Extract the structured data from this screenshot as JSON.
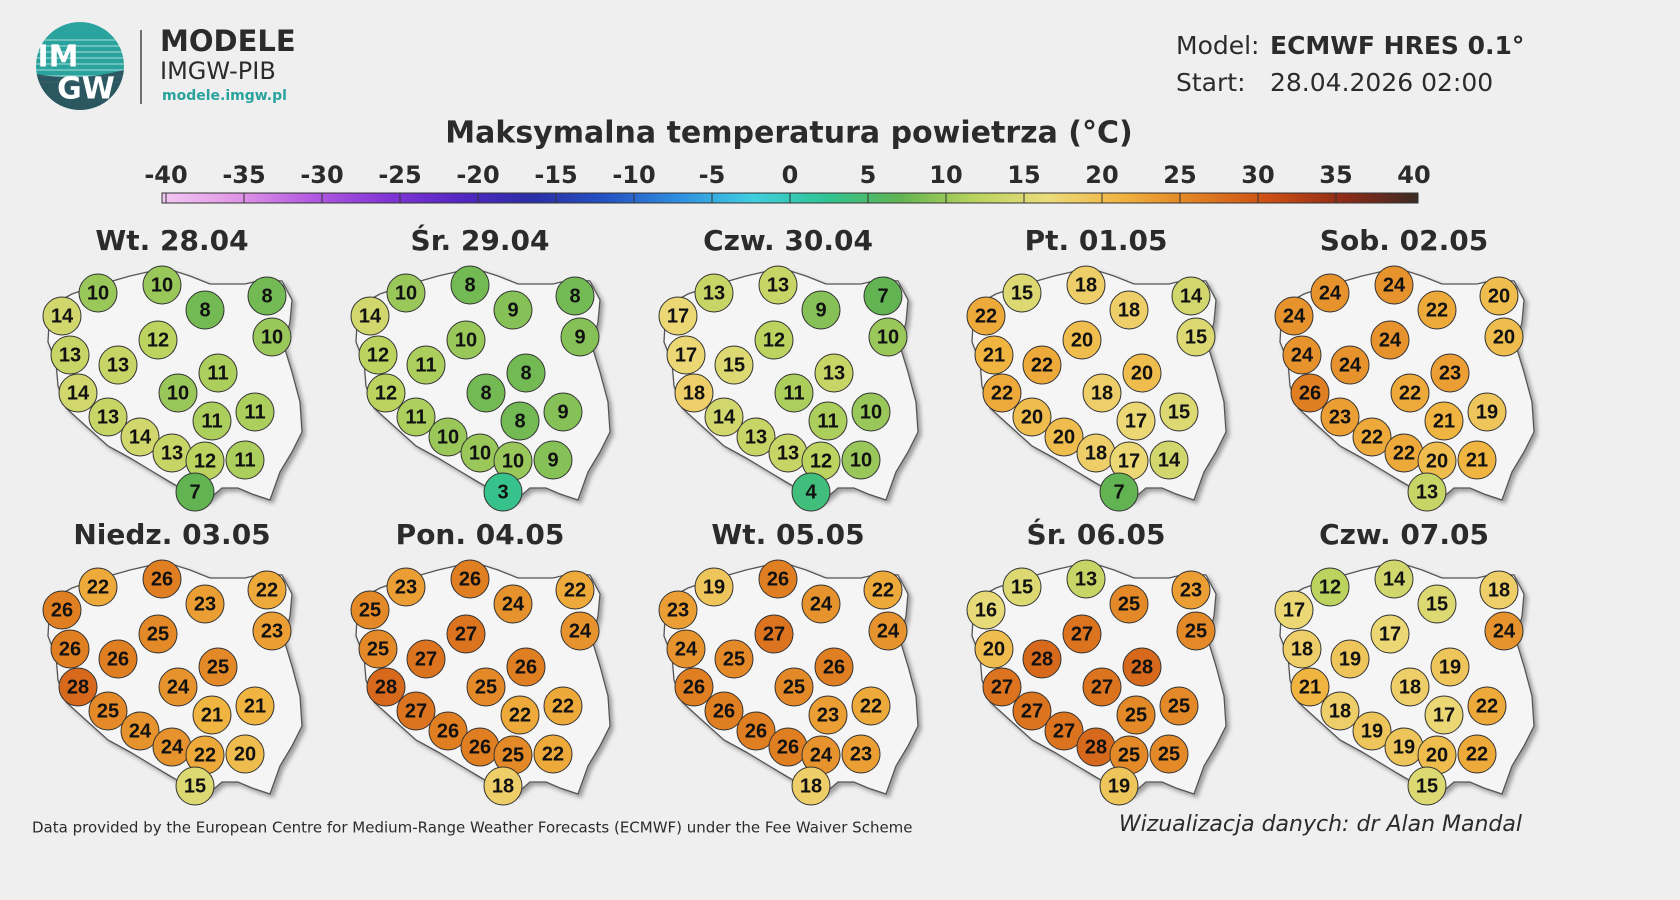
{
  "header": {
    "logo": [
      "IM",
      "GW"
    ],
    "brand": "MODELE",
    "institute": "IMGW-PIB",
    "url": "modele.imgw.pl",
    "model_label": "Model:",
    "model": "ECMWF HRES 0.1°",
    "start_label": "Start:",
    "start": "28.04.2026 02:00",
    "title": "Maksymalna temperatura powietrza (°C)"
  },
  "colorbar": {
    "ticks": [
      -40,
      -35,
      -30,
      -25,
      -20,
      -15,
      -10,
      -5,
      0,
      5,
      10,
      15,
      20,
      25,
      30,
      35,
      40
    ],
    "colors": [
      "#f3c8f3",
      "#e197e6",
      "#b45be2",
      "#8436d6",
      "#5626c4",
      "#2a2ea6",
      "#2452c2",
      "#2f8fe0",
      "#3fcfe0",
      "#2fc493",
      "#63b452",
      "#b9d35e",
      "#ecdc7c",
      "#f0b23f",
      "#e07f22",
      "#cc4e14",
      "#8e2a17",
      "#3b2a22"
    ]
  },
  "maps": [
    {
      "title": "Wt. 28.04",
      "values": [
        14,
        10,
        10,
        8,
        8,
        10,
        13,
        13,
        12,
        11,
        14,
        10,
        13,
        11,
        11,
        14,
        13,
        12,
        11,
        7
      ]
    },
    {
      "title": "Śr. 29.04",
      "values": [
        14,
        10,
        8,
        9,
        8,
        9,
        12,
        11,
        10,
        8,
        12,
        8,
        11,
        8,
        9,
        10,
        10,
        10,
        9,
        3
      ]
    },
    {
      "title": "Czw. 30.04",
      "values": [
        17,
        13,
        13,
        9,
        7,
        10,
        17,
        15,
        12,
        13,
        18,
        11,
        14,
        11,
        10,
        13,
        13,
        12,
        10,
        4
      ]
    },
    {
      "title": "Pt. 01.05",
      "values": [
        22,
        15,
        18,
        18,
        14,
        15,
        21,
        22,
        20,
        20,
        22,
        18,
        20,
        17,
        15,
        20,
        18,
        17,
        14,
        7
      ]
    },
    {
      "title": "Sob. 02.05",
      "values": [
        24,
        24,
        24,
        22,
        20,
        20,
        24,
        24,
        24,
        23,
        26,
        22,
        23,
        21,
        19,
        22,
        22,
        20,
        21,
        13
      ]
    },
    {
      "title": "Niedz. 03.05",
      "values": [
        26,
        22,
        26,
        23,
        22,
        23,
        26,
        26,
        25,
        25,
        28,
        24,
        25,
        21,
        21,
        24,
        24,
        22,
        20,
        15
      ]
    },
    {
      "title": "Pon. 04.05",
      "values": [
        25,
        23,
        26,
        24,
        22,
        24,
        25,
        27,
        27,
        26,
        28,
        25,
        27,
        22,
        22,
        26,
        26,
        25,
        22,
        18
      ]
    },
    {
      "title": "Wt. 05.05",
      "values": [
        23,
        19,
        26,
        24,
        22,
        24,
        24,
        25,
        27,
        26,
        26,
        25,
        26,
        23,
        22,
        26,
        26,
        24,
        23,
        18
      ]
    },
    {
      "title": "Śr. 06.05",
      "values": [
        16,
        15,
        13,
        25,
        23,
        25,
        20,
        28,
        27,
        28,
        27,
        27,
        27,
        25,
        25,
        27,
        28,
        25,
        25,
        19
      ]
    },
    {
      "title": "Czw. 07.05",
      "values": [
        17,
        12,
        14,
        15,
        18,
        24,
        18,
        19,
        17,
        19,
        21,
        18,
        18,
        17,
        22,
        19,
        19,
        20,
        22,
        15
      ]
    }
  ],
  "footer": {
    "source": "Data provided by the European Centre for Medium-Range Weather Forecasts (ECMWF) under the Fee Waiver Scheme",
    "credit": "Wizualizacja danych: dr Alan Mandal"
  }
}
